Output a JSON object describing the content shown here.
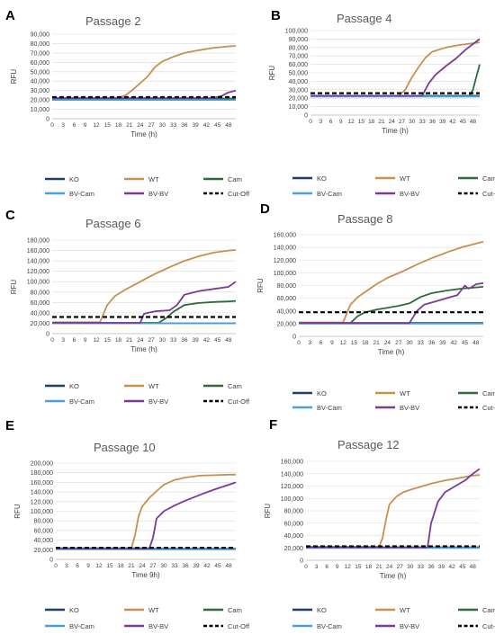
{
  "colors": {
    "KO": "#1f3f6e",
    "WT": "#c98f4f",
    "Cam": "#2f6b3a",
    "BV-Cam": "#4a9fe0",
    "BV-BV": "#7a3a9a",
    "Cut-Off": "#000000",
    "grid": "#d9d9d9",
    "axis": "#bfbfbf",
    "tick": "#404040",
    "title": "#595959"
  },
  "legend_entries": [
    {
      "key": "KO",
      "label": "KO",
      "dashed": false
    },
    {
      "key": "WT",
      "label": "WT",
      "dashed": false
    },
    {
      "key": "Cam",
      "label": "Cam",
      "dashed": false
    },
    {
      "key": "BV-Cam",
      "label": "BV-Cam",
      "dashed": false
    },
    {
      "key": "BV-BV",
      "label": "BV-BV",
      "dashed": false
    },
    {
      "key": "Cut-Off",
      "label": "Cut-Off",
      "dashed": true
    }
  ],
  "chart_data": [
    {
      "type": "line",
      "panel_letter": "A",
      "title": "Passage 2",
      "xlabel": "Time (h)",
      "ylabel": "RFU",
      "xticks": [
        "0",
        "3",
        "6",
        "9",
        "12",
        "15",
        "18",
        "21",
        "24",
        "27",
        "30",
        "33",
        "36",
        "39",
        "42",
        "45",
        "48"
      ],
      "xlim": [
        0,
        50
      ],
      "ylim": [
        0,
        90000
      ],
      "yticks": [
        "0",
        "10,000",
        "20,000",
        "30,000",
        "40,000",
        "50,000",
        "60,000",
        "70,000",
        "80,000",
        "90,000"
      ],
      "grid": true,
      "legend_position": "bottom",
      "series": [
        {
          "name": "KO",
          "x": [
            0,
            50
          ],
          "y": [
            21000,
            21000
          ]
        },
        {
          "name": "WT",
          "x": [
            0,
            18,
            20,
            22,
            24,
            26,
            28,
            30,
            33,
            36,
            40,
            44,
            48,
            50
          ],
          "y": [
            22000,
            22000,
            25000,
            31000,
            38000,
            45000,
            55000,
            61000,
            66000,
            70000,
            73000,
            75500,
            77000,
            77500
          ]
        },
        {
          "name": "Cam",
          "x": [
            0,
            50
          ],
          "y": [
            21500,
            21500
          ]
        },
        {
          "name": "BV-Cam",
          "x": [
            0,
            50
          ],
          "y": [
            20000,
            20000
          ]
        },
        {
          "name": "BV-BV",
          "x": [
            0,
            44,
            46,
            48,
            50
          ],
          "y": [
            22000,
            22000,
            24000,
            28000,
            30000
          ]
        },
        {
          "name": "Cut-Off",
          "x": [
            0,
            50
          ],
          "y": [
            23000,
            23000
          ]
        }
      ]
    },
    {
      "type": "line",
      "panel_letter": "B",
      "title": "Passage 4",
      "xlabel": "Time (h)",
      "ylabel": "RFU",
      "xticks": [
        "0",
        "3",
        "6",
        "9",
        "12",
        "15",
        "18",
        "21",
        "24",
        "27",
        "30",
        "33",
        "36",
        "39",
        "42",
        "45",
        "48"
      ],
      "xlim": [
        0,
        50
      ],
      "ylim": [
        0,
        100000
      ],
      "yticks": [
        "0",
        "10,000",
        "20,000",
        "30,000",
        "40,000",
        "50,000",
        "60,000",
        "70,000",
        "80,000",
        "90,000",
        "100,000"
      ],
      "grid": true,
      "legend_position": "bottom",
      "series": [
        {
          "name": "KO",
          "x": [
            0,
            50
          ],
          "y": [
            23000,
            23000
          ]
        },
        {
          "name": "WT",
          "x": [
            0,
            26,
            28,
            30,
            32,
            34,
            36,
            40,
            44,
            48,
            50
          ],
          "y": [
            23000,
            23000,
            30000,
            45000,
            57000,
            68000,
            75000,
            80000,
            83000,
            85000,
            86000
          ]
        },
        {
          "name": "Cam",
          "x": [
            0,
            47,
            48,
            49,
            50
          ],
          "y": [
            23000,
            23000,
            30000,
            45000,
            60000
          ]
        },
        {
          "name": "BV-Cam",
          "x": [
            0,
            50
          ],
          "y": [
            22000,
            22000
          ]
        },
        {
          "name": "BV-BV",
          "x": [
            0,
            33,
            35,
            37,
            40,
            43,
            46,
            48,
            50
          ],
          "y": [
            23000,
            23000,
            38000,
            48000,
            58000,
            67000,
            78000,
            84000,
            90000
          ]
        },
        {
          "name": "Cut-Off",
          "x": [
            0,
            50
          ],
          "y": [
            26000,
            26000
          ]
        }
      ]
    },
    {
      "type": "line",
      "panel_letter": "C",
      "title": "Passage 6",
      "xlabel": "Time (h)",
      "ylabel": "RFU",
      "xticks": [
        "0",
        "3",
        "6",
        "9",
        "12",
        "15",
        "18",
        "21",
        "24",
        "27",
        "30",
        "33",
        "36",
        "39",
        "42",
        "45",
        "48"
      ],
      "xlim": [
        0,
        50
      ],
      "ylim": [
        0,
        180000
      ],
      "yticks": [
        "0",
        "20,000",
        "40,000",
        "60,000",
        "80,000",
        "100,000",
        "120,000",
        "140,000",
        "160,000",
        "180,000"
      ],
      "grid": true,
      "legend_position": "bottom",
      "series": [
        {
          "name": "KO",
          "x": [
            0,
            50
          ],
          "y": [
            20000,
            20000
          ]
        },
        {
          "name": "WT",
          "x": [
            0,
            13,
            15,
            17,
            20,
            24,
            28,
            32,
            36,
            40,
            44,
            48,
            50
          ],
          "y": [
            22000,
            22000,
            55000,
            72000,
            85000,
            100000,
            115000,
            128000,
            140000,
            149000,
            156000,
            160000,
            161000
          ]
        },
        {
          "name": "Cam",
          "x": [
            0,
            29,
            31,
            33,
            36,
            40,
            44,
            48,
            50
          ],
          "y": [
            21000,
            21000,
            30000,
            42000,
            55000,
            59000,
            61000,
            62000,
            63000
          ]
        },
        {
          "name": "BV-Cam",
          "x": [
            0,
            50
          ],
          "y": [
            20000,
            20000
          ]
        },
        {
          "name": "BV-BV",
          "x": [
            0,
            24,
            25,
            26,
            28,
            32,
            34,
            36,
            40,
            44,
            48,
            49,
            50
          ],
          "y": [
            21000,
            21000,
            38000,
            40000,
            43000,
            45000,
            55000,
            75000,
            82000,
            86000,
            90000,
            95000,
            100000
          ]
        },
        {
          "name": "Cut-Off",
          "x": [
            0,
            50
          ],
          "y": [
            32000,
            32000
          ]
        }
      ]
    },
    {
      "type": "line",
      "panel_letter": "D",
      "title": "Passage 8",
      "xlabel": "Time (h)",
      "ylabel": "RFU",
      "xticks": [
        "0",
        "3",
        "6",
        "9",
        "12",
        "15",
        "18",
        "21",
        "24",
        "27",
        "30",
        "33",
        "36",
        "39",
        "42",
        "45",
        "48"
      ],
      "xlim": [
        0,
        50
      ],
      "ylim": [
        0,
        160000
      ],
      "yticks": [
        "0",
        "20,000",
        "40,000",
        "60,000",
        "80,000",
        "100,000",
        "120,000",
        "140,000",
        "160,000"
      ],
      "grid": true,
      "legend_position": "bottom",
      "series": [
        {
          "name": "KO",
          "x": [
            0,
            50
          ],
          "y": [
            21000,
            21000
          ]
        },
        {
          "name": "WT",
          "x": [
            0,
            12,
            14,
            16,
            18,
            21,
            24,
            28,
            32,
            36,
            40,
            44,
            48,
            50
          ],
          "y": [
            22000,
            22000,
            50000,
            62000,
            70000,
            82000,
            92000,
            102000,
            113000,
            123000,
            132000,
            140000,
            146000,
            149000
          ]
        },
        {
          "name": "Cam",
          "x": [
            0,
            14,
            16,
            18,
            21,
            24,
            27,
            30,
            33,
            36,
            40,
            44,
            48,
            50
          ],
          "y": [
            21000,
            21000,
            32000,
            38000,
            42000,
            45000,
            48000,
            52000,
            62000,
            68000,
            72000,
            75000,
            77000,
            78000
          ]
        },
        {
          "name": "BV-Cam",
          "x": [
            0,
            50
          ],
          "y": [
            20000,
            20000
          ]
        },
        {
          "name": "BV-BV",
          "x": [
            0,
            30,
            32,
            34,
            37,
            40,
            43,
            45,
            46,
            47,
            48,
            50
          ],
          "y": [
            21000,
            21000,
            40000,
            50000,
            55000,
            60000,
            65000,
            80000,
            75000,
            78000,
            82000,
            84000
          ]
        },
        {
          "name": "Cut-Off",
          "x": [
            0,
            50
          ],
          "y": [
            38000,
            38000
          ]
        }
      ]
    },
    {
      "type": "line",
      "panel_letter": "E",
      "title": "Passage 10",
      "xlabel": "Time 9h)",
      "ylabel": "RFU",
      "xticks": [
        "0",
        "3",
        "6",
        "9",
        "12",
        "15",
        "18",
        "21",
        "24",
        "27",
        "30",
        "33",
        "36",
        "39",
        "42",
        "45",
        "48"
      ],
      "xlim": [
        0,
        50
      ],
      "ylim": [
        0,
        200000
      ],
      "yticks": [
        "0",
        "20,000",
        "40,000",
        "60,000",
        "80,000",
        "100,000",
        "120,000",
        "140,000",
        "160,000",
        "180,000",
        "200,000"
      ],
      "grid": true,
      "legend_position": "bottom",
      "series": [
        {
          "name": "KO",
          "x": [
            0,
            50
          ],
          "y": [
            22000,
            22000
          ]
        },
        {
          "name": "WT",
          "x": [
            0,
            21,
            22,
            23,
            24,
            26,
            28,
            30,
            33,
            36,
            40,
            44,
            48,
            50
          ],
          "y": [
            23000,
            23000,
            50000,
            90000,
            110000,
            128000,
            142000,
            155000,
            165000,
            170000,
            174000,
            175000,
            176000,
            176000
          ]
        },
        {
          "name": "Cam",
          "x": [
            0,
            50
          ],
          "y": [
            22000,
            22000
          ]
        },
        {
          "name": "BV-Cam",
          "x": [
            0,
            50
          ],
          "y": [
            21000,
            21000
          ]
        },
        {
          "name": "BV-BV",
          "x": [
            0,
            26,
            27,
            28,
            30,
            33,
            36,
            40,
            44,
            48,
            50
          ],
          "y": [
            23000,
            23000,
            45000,
            85000,
            100000,
            112000,
            122000,
            134000,
            145000,
            155000,
            160000
          ]
        },
        {
          "name": "Cut-Off",
          "x": [
            0,
            50
          ],
          "y": [
            24000,
            24000
          ]
        }
      ]
    },
    {
      "type": "line",
      "panel_letter": "F",
      "title": "Passage 12",
      "xlabel": "Time (h)",
      "ylabel": "RFU",
      "xticks": [
        "0",
        "3",
        "6",
        "9",
        "12",
        "15",
        "18",
        "21",
        "24",
        "27",
        "30",
        "33",
        "36",
        "39",
        "42",
        "45",
        "48"
      ],
      "xlim": [
        0,
        50
      ],
      "ylim": [
        0,
        160000
      ],
      "yticks": [
        "0",
        "20,000",
        "40,000",
        "60,000",
        "80,000",
        "100,000",
        "120,000",
        "140,000",
        "160,000"
      ],
      "grid": true,
      "legend_position": "bottom",
      "series": [
        {
          "name": "KO",
          "x": [
            0,
            50
          ],
          "y": [
            21000,
            21000
          ]
        },
        {
          "name": "WT",
          "x": [
            0,
            21,
            22,
            23,
            24,
            26,
            28,
            30,
            33,
            36,
            40,
            44,
            48,
            50
          ],
          "y": [
            22000,
            22000,
            35000,
            65000,
            90000,
            103000,
            110000,
            114000,
            119000,
            124000,
            129000,
            133000,
            137000,
            138000
          ]
        },
        {
          "name": "Cam",
          "x": [
            0,
            50
          ],
          "y": [
            21000,
            21000
          ]
        },
        {
          "name": "BV-Cam",
          "x": [
            0,
            50
          ],
          "y": [
            20000,
            20000
          ]
        },
        {
          "name": "BV-BV",
          "x": [
            0,
            35,
            36,
            38,
            40,
            43,
            46,
            48,
            50
          ],
          "y": [
            21000,
            21000,
            60000,
            95000,
            110000,
            120000,
            130000,
            140000,
            148000
          ]
        },
        {
          "name": "Cut-Off",
          "x": [
            0,
            50
          ],
          "y": [
            22500,
            22500
          ]
        }
      ]
    }
  ]
}
